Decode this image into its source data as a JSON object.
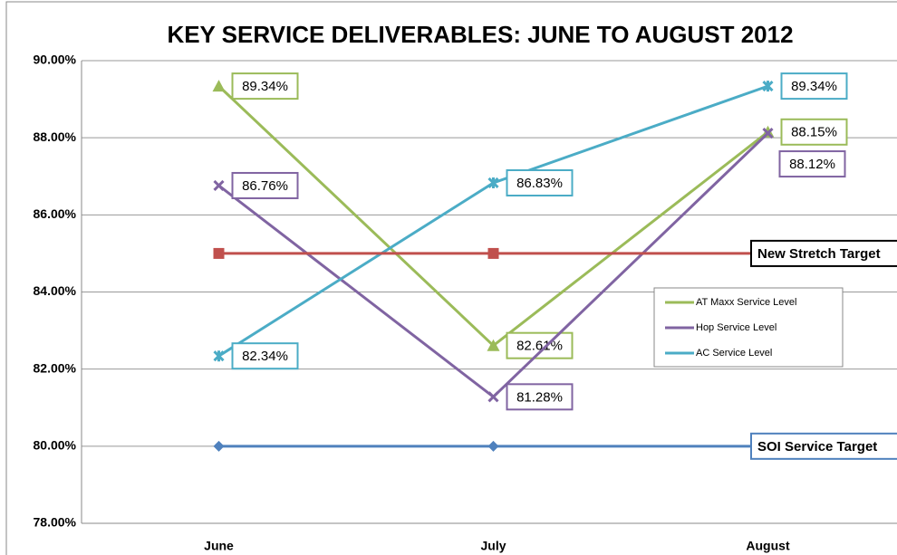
{
  "chart_data": {
    "type": "line",
    "title": "KEY SERVICE DELIVERABLES: JUNE TO AUGUST 2012",
    "categories": [
      "June",
      "July",
      "August"
    ],
    "series": [
      {
        "name": "AT Maxx Service Level",
        "color": "#9bbb59",
        "marker": "triangle",
        "values": [
          89.34,
          82.61,
          88.15
        ],
        "value_labels": [
          "89.34%",
          "82.61%",
          "88.15%"
        ]
      },
      {
        "name": "Hop Service Level",
        "color": "#8064a2",
        "marker": "x",
        "values": [
          86.76,
          81.28,
          88.12
        ],
        "value_labels": [
          "86.76%",
          "81.28%",
          "88.12%"
        ]
      },
      {
        "name": "AC Service Level",
        "color": "#4bacc6",
        "marker": "star",
        "values": [
          82.34,
          86.83,
          89.34
        ],
        "value_labels": [
          "82.34%",
          "86.83%",
          "89.34%"
        ]
      },
      {
        "name": "New Stretch Target",
        "color": "#c0504d",
        "marker": "square",
        "values": [
          85,
          85,
          85
        ]
      },
      {
        "name": "SOI Service Target",
        "color": "#4f81bd",
        "marker": "diamond",
        "values": [
          80,
          80,
          80
        ]
      }
    ],
    "ylim": [
      78,
      90
    ],
    "yticks": [
      {
        "value": 78,
        "label": "78.00%"
      },
      {
        "value": 80,
        "label": "80.00%"
      },
      {
        "value": 82,
        "label": "82.00%"
      },
      {
        "value": 84,
        "label": "84.00%"
      },
      {
        "value": 86,
        "label": "86.00%"
      },
      {
        "value": 88,
        "label": "88.00%"
      },
      {
        "value": 90,
        "label": "90.00%"
      }
    ],
    "grid": true
  }
}
